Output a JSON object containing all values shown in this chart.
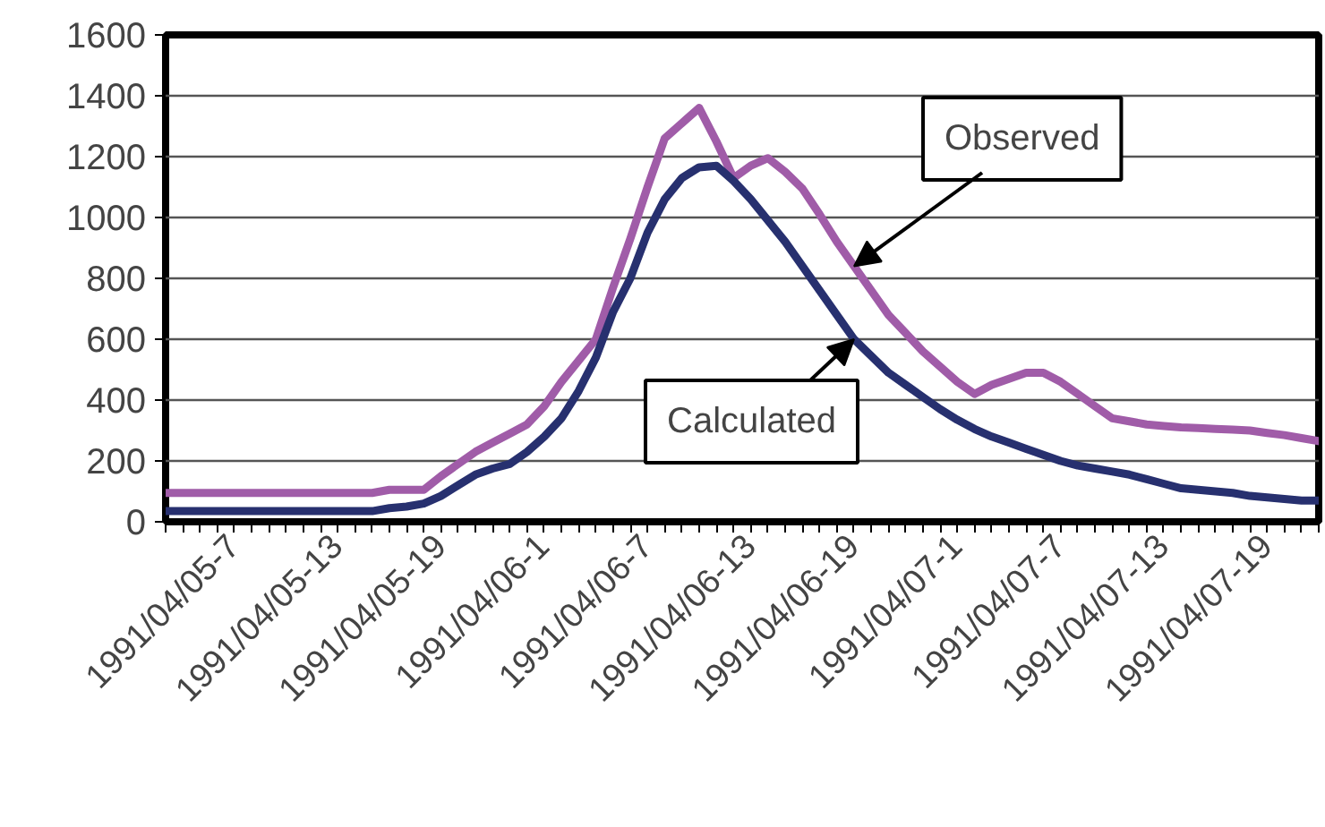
{
  "chart_data": {
    "type": "line",
    "categories": [
      null,
      null,
      null,
      null,
      "1991/04/05-7",
      null,
      null,
      null,
      null,
      null,
      "1991/04/05-13",
      null,
      null,
      null,
      null,
      null,
      "1991/04/05-19",
      null,
      null,
      null,
      null,
      null,
      "1991/04/06-1",
      null,
      null,
      null,
      null,
      null,
      "1991/04/06-7",
      null,
      null,
      null,
      null,
      null,
      "1991/04/06-13",
      null,
      null,
      null,
      null,
      null,
      "1991/04/06-19",
      null,
      null,
      null,
      null,
      null,
      "1991/04/07-1",
      null,
      null,
      null,
      null,
      null,
      "1991/04/07-7",
      null,
      null,
      null,
      null,
      null,
      "1991/04/07-13",
      null,
      null,
      null,
      null,
      null,
      "1991/04/07-19",
      null,
      null,
      null
    ],
    "series": [
      {
        "color": "#a05ca8",
        "values": [
          95,
          95,
          95,
          95,
          95,
          95,
          95,
          95,
          95,
          95,
          95,
          95,
          95,
          105,
          105,
          105,
          150,
          190,
          230,
          260,
          290,
          320,
          380,
          460,
          530,
          600,
          770,
          930,
          1100,
          1260,
          1310,
          1360,
          1250,
          1130,
          1170,
          1195,
          1150,
          1095,
          1010,
          920,
          840,
          760,
          680,
          620,
          560,
          510,
          460,
          420,
          450,
          470,
          490,
          490,
          460,
          420,
          380,
          340,
          330,
          320,
          315,
          310,
          308,
          305,
          303,
          300,
          292,
          285,
          275,
          265
        ]
      },
      {
        "color": "#27306f",
        "values": [
          35,
          35,
          35,
          35,
          35,
          35,
          35,
          35,
          35,
          35,
          35,
          35,
          35,
          45,
          50,
          60,
          85,
          120,
          155,
          175,
          190,
          230,
          280,
          340,
          430,
          540,
          690,
          800,
          950,
          1060,
          1130,
          1165,
          1170,
          1120,
          1060,
          990,
          920,
          840,
          760,
          680,
          600,
          545,
          490,
          450,
          410,
          370,
          335,
          305,
          280,
          260,
          240,
          220,
          200,
          185,
          175,
          165,
          155,
          140,
          125,
          110,
          105,
          100,
          95,
          85,
          80,
          75,
          70,
          70
        ]
      }
    ],
    "ylim": [
      0,
      1600
    ],
    "yticks": [
      0,
      200,
      400,
      600,
      800,
      1000,
      1200,
      1400,
      1600
    ],
    "grid": "y",
    "annotations": [
      {
        "text": "Observed",
        "x": "1991/04/06-19",
        "y": 840
      },
      {
        "text": "Calculated",
        "x": "1991/04/06-19",
        "y": 600
      }
    ]
  }
}
